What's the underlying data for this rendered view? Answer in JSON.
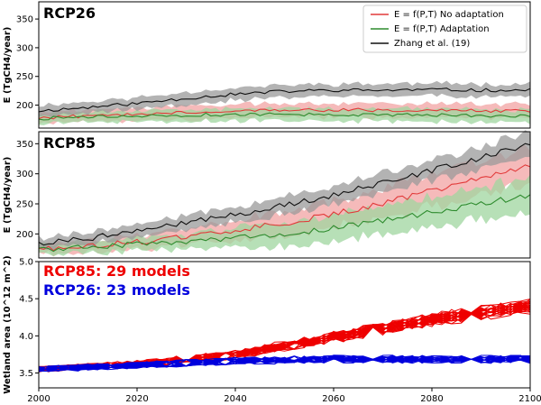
{
  "chart_data": [
    {
      "type": "line",
      "title": "RCP26",
      "ylabel": "E (TgCH4/year)",
      "ylim": [
        160,
        380
      ],
      "yticks": [
        200,
        250,
        300,
        350
      ],
      "xlim": [
        2000,
        2100
      ],
      "legend": {
        "placement": "top-right",
        "entries": [
          {
            "label": "E = f(P,T) No adaptation",
            "color": "#e23a3a"
          },
          {
            "label": "E = f(P,T) Adaptation",
            "color": "#2e8b2e"
          },
          {
            "label": "Zhang et al. (19)",
            "color": "#111111"
          }
        ]
      },
      "series": [
        {
          "name": "Zhang et al. (19)",
          "color": "#111111",
          "band_color": "#9a9a9a",
          "x": [
            2000,
            2010,
            2020,
            2030,
            2040,
            2050,
            2060,
            2070,
            2080,
            2090,
            2100
          ],
          "values": [
            190,
            196,
            203,
            212,
            219,
            224,
            226,
            226,
            227,
            226,
            226
          ],
          "band": [
            10,
            10,
            10,
            11,
            11,
            11,
            11,
            11,
            11,
            11,
            11
          ]
        },
        {
          "name": "No adaptation",
          "color": "#e23a3a",
          "band_color": "#f2a3a3",
          "x": [
            2000,
            2010,
            2020,
            2030,
            2040,
            2050,
            2060,
            2070,
            2080,
            2090,
            2100
          ],
          "values": [
            178,
            181,
            185,
            188,
            190,
            191,
            192,
            191,
            191,
            190,
            190
          ],
          "band": [
            9,
            10,
            11,
            12,
            12,
            12,
            12,
            12,
            12,
            12,
            12
          ]
        },
        {
          "name": "Adaptation",
          "color": "#2e8b2e",
          "band_color": "#9fd69f",
          "x": [
            2000,
            2010,
            2020,
            2030,
            2040,
            2050,
            2060,
            2070,
            2080,
            2090,
            2100
          ],
          "values": [
            177,
            179,
            181,
            183,
            184,
            184,
            184,
            183,
            183,
            182,
            181
          ],
          "band": [
            8,
            9,
            10,
            11,
            11,
            11,
            11,
            11,
            11,
            11,
            11
          ]
        }
      ]
    },
    {
      "type": "line",
      "title": "RCP85",
      "ylabel": "E (TgCH4/year)",
      "ylim": [
        160,
        370
      ],
      "yticks": [
        200,
        250,
        300,
        350
      ],
      "xlim": [
        2000,
        2100
      ],
      "series": [
        {
          "name": "Zhang et al. (19)",
          "color": "#111111",
          "band_color": "#9a9a9a",
          "x": [
            2000,
            2010,
            2020,
            2030,
            2040,
            2050,
            2060,
            2070,
            2080,
            2090,
            2100
          ],
          "values": [
            185,
            193,
            205,
            218,
            232,
            248,
            265,
            284,
            305,
            327,
            350
          ],
          "band": [
            9,
            10,
            11,
            12,
            13,
            14,
            15,
            16,
            17,
            18,
            19
          ]
        },
        {
          "name": "No adaptation",
          "color": "#e23a3a",
          "band_color": "#f2a3a3",
          "x": [
            2000,
            2010,
            2020,
            2030,
            2040,
            2050,
            2060,
            2070,
            2080,
            2090,
            2100
          ],
          "values": [
            175,
            180,
            187,
            195,
            205,
            218,
            233,
            251,
            272,
            293,
            312
          ],
          "band": [
            8,
            10,
            12,
            14,
            17,
            20,
            22,
            24,
            26,
            28,
            30
          ]
        },
        {
          "name": "Adaptation",
          "color": "#2e8b2e",
          "band_color": "#9fd69f",
          "x": [
            2000,
            2010,
            2020,
            2030,
            2040,
            2050,
            2060,
            2070,
            2080,
            2090,
            2100
          ],
          "values": [
            175,
            178,
            182,
            187,
            193,
            200,
            210,
            222,
            236,
            250,
            264
          ],
          "band": [
            7,
            9,
            11,
            13,
            16,
            19,
            21,
            23,
            25,
            27,
            28
          ]
        }
      ]
    },
    {
      "type": "line",
      "title": "",
      "ylabel": "Wetland area (10^12 m^2)",
      "ylim": [
        3.3,
        5.0
      ],
      "yticks": [
        3.5,
        4.0,
        4.5,
        5.0
      ],
      "xlim": [
        2000,
        2100
      ],
      "xticks": [
        2000,
        2020,
        2040,
        2060,
        2080,
        2100
      ],
      "annotations": [
        {
          "text": "RCP85: 29 models",
          "color": "#ee0000"
        },
        {
          "text": "RCP26: 23 models",
          "color": "#0000dd"
        }
      ],
      "ensembles": [
        {
          "name": "RCP85",
          "models": 29,
          "color": "#ee0000",
          "x": [
            2000,
            2020,
            2040,
            2060,
            2080,
            2100
          ],
          "mean": [
            3.55,
            3.62,
            3.75,
            3.98,
            4.22,
            4.4
          ],
          "spread": [
            0.05,
            0.08,
            0.12,
            0.18,
            0.24,
            0.28
          ]
        },
        {
          "name": "RCP26",
          "models": 23,
          "color": "#0000dd",
          "x": [
            2000,
            2020,
            2040,
            2060,
            2080,
            2100
          ],
          "mean": [
            3.55,
            3.6,
            3.66,
            3.68,
            3.68,
            3.68
          ],
          "spread": [
            0.05,
            0.07,
            0.08,
            0.09,
            0.09,
            0.1
          ]
        }
      ]
    }
  ]
}
